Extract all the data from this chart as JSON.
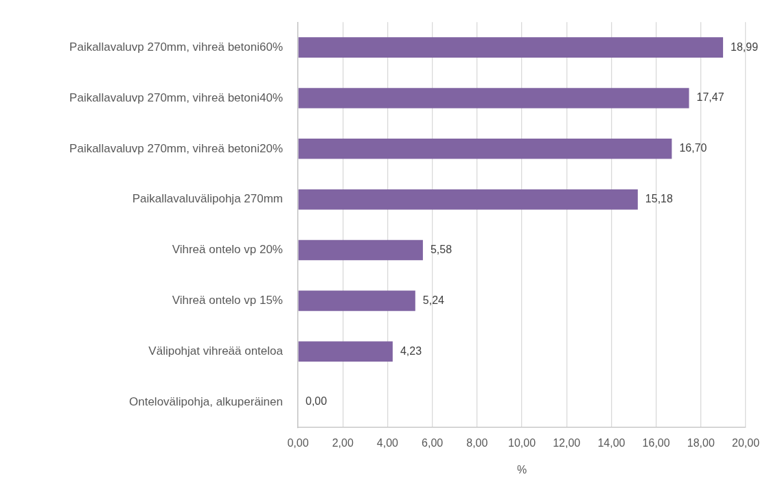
{
  "chart_data": {
    "type": "bar",
    "orientation": "horizontal",
    "xlabel": "%",
    "categories": [
      "Paikallavaluvp 270mm, vihreä betoni60%",
      "Paikallavaluvp 270mm, vihreä betoni40%",
      "Paikallavaluvp 270mm, vihreä betoni20%",
      "Paikallavaluvälipohja 270mm",
      "Vihreä ontelo vp 20%",
      "Vihreä ontelo vp 15%",
      "Välipohjat vihreää onteloa",
      "Ontelovälipohja, alkuperäinen"
    ],
    "values": [
      18.99,
      17.47,
      16.7,
      15.18,
      5.58,
      5.24,
      4.23,
      0.0
    ],
    "value_labels": [
      "18,99",
      "17,47",
      "16,70",
      "15,18",
      "5,58",
      "5,24",
      "4,23",
      "0,00"
    ],
    "color": "#8064a2",
    "xlim": [
      0,
      20
    ],
    "xticks": [
      {
        "value": 0,
        "label": "0,00"
      },
      {
        "value": 2,
        "label": "2,00"
      },
      {
        "value": 4,
        "label": "4,00"
      },
      {
        "value": 6,
        "label": "6,00"
      },
      {
        "value": 8,
        "label": "8,00"
      },
      {
        "value": 10,
        "label": "10,00"
      },
      {
        "value": 12,
        "label": "12,00"
      },
      {
        "value": 14,
        "label": "14,00"
      },
      {
        "value": 16,
        "label": "16,00"
      },
      {
        "value": 18,
        "label": "18,00"
      },
      {
        "value": 20,
        "label": "20,00"
      }
    ],
    "grid": "x"
  }
}
